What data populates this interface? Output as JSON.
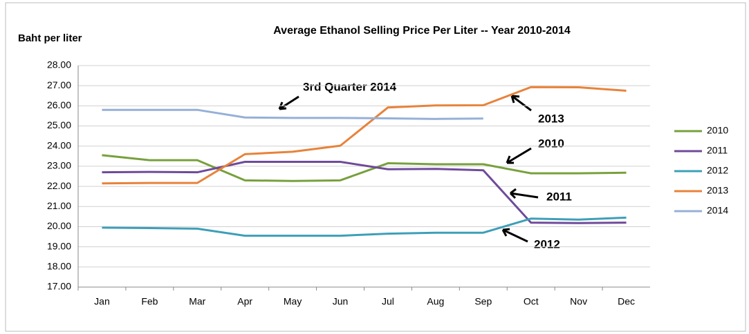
{
  "chart_data": {
    "type": "line",
    "title": "Average Ethanol Selling Price Per Liter -- Year 2010-2014",
    "y_label": "Baht per liter",
    "categories": [
      "Jan",
      "Feb",
      "Mar",
      "Apr",
      "May",
      "Jun",
      "Jul",
      "Aug",
      "Sep",
      "Oct",
      "Nov",
      "Dec"
    ],
    "series": [
      {
        "name": "2010",
        "color": "#77a03c",
        "values": [
          23.55,
          23.3,
          23.3,
          22.3,
          22.27,
          22.3,
          23.15,
          23.1,
          23.1,
          22.65,
          22.65,
          22.68
        ]
      },
      {
        "name": "2011",
        "color": "#6f4a9a",
        "values": [
          22.7,
          22.72,
          22.7,
          23.22,
          23.22,
          23.22,
          22.85,
          22.87,
          22.8,
          20.2,
          20.18,
          20.2
        ]
      },
      {
        "name": "2012",
        "color": "#3d9fb8",
        "values": [
          19.95,
          19.93,
          19.9,
          19.55,
          19.55,
          19.55,
          19.65,
          19.7,
          19.7,
          20.4,
          20.35,
          20.45
        ]
      },
      {
        "name": "2013",
        "color": "#e8823a",
        "values": [
          22.15,
          22.17,
          22.17,
          23.6,
          23.72,
          24.02,
          25.92,
          26.02,
          26.03,
          26.93,
          26.92,
          26.75
        ]
      },
      {
        "name": "2014",
        "color": "#95b0d8",
        "values": [
          25.8,
          25.8,
          25.8,
          25.42,
          25.4,
          25.4,
          25.38,
          25.35,
          25.37,
          null,
          null,
          null
        ]
      }
    ],
    "ylim": [
      17,
      28
    ],
    "yticks": [
      {
        "value": 17,
        "label": "17.00"
      },
      {
        "value": 18,
        "label": "18.00"
      },
      {
        "value": 19,
        "label": "19.00"
      },
      {
        "value": 20,
        "label": "20.00"
      },
      {
        "value": 21,
        "label": "21.00"
      },
      {
        "value": 22,
        "label": "22.00"
      },
      {
        "value": 23,
        "label": "23.00"
      },
      {
        "value": 24,
        "label": "24.00"
      },
      {
        "value": 25,
        "label": "25.00"
      },
      {
        "value": 26,
        "label": "26.00"
      },
      {
        "value": 27,
        "label": "27.00"
      },
      {
        "value": 28,
        "label": "28.00"
      }
    ],
    "grid": true,
    "legend": "right",
    "annotations": [
      "3rd   Quarter 2014",
      "2013",
      "2010",
      "2011",
      "2012"
    ]
  }
}
